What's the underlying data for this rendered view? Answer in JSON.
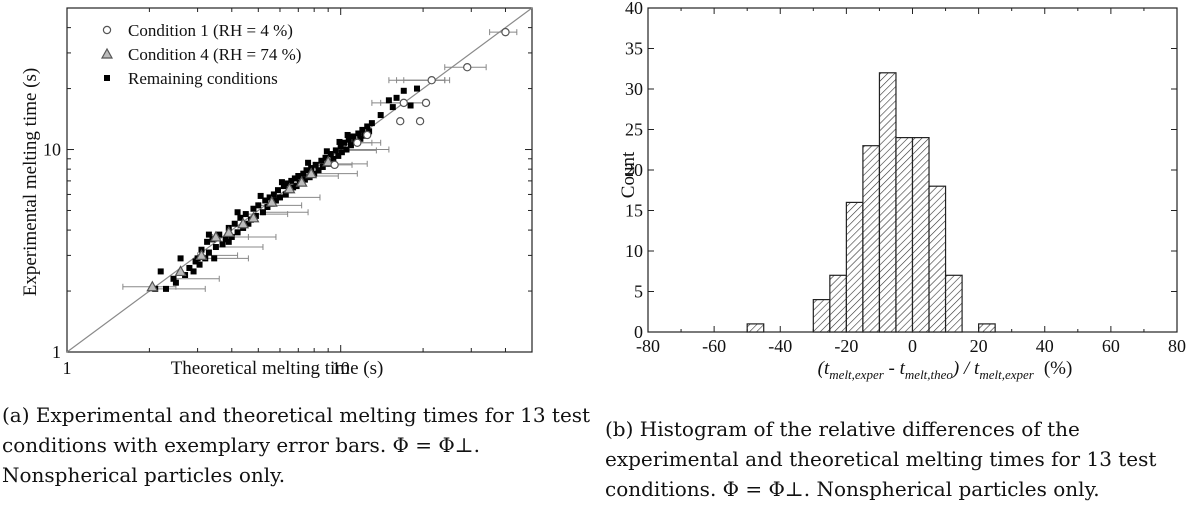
{
  "chart_data": [
    {
      "type": "scatter",
      "title": "",
      "xlabel": "Theoretical melting time (s)",
      "ylabel": "Experimental melting time (s)",
      "xscale": "log",
      "yscale": "log",
      "xlim": [
        1,
        50
      ],
      "ylim": [
        1,
        50
      ],
      "x_tick_labels": [
        "1",
        "10"
      ],
      "y_tick_labels": [
        "1",
        "10"
      ],
      "reference_line": "y = x",
      "legend_position": "top-left",
      "series": [
        {
          "name": "Condition 1 (RH = 4 %)",
          "marker": "open-circle",
          "points": [
            [
              40,
              38
            ],
            [
              21.5,
              22
            ],
            [
              29,
              25.5
            ],
            [
              17,
              17
            ],
            [
              20.5,
              17
            ],
            [
              16.5,
              13.8
            ],
            [
              19.5,
              13.8
            ],
            [
              11.5,
              10.8
            ],
            [
              12.5,
              11.8
            ],
            [
              9.5,
              8.4
            ]
          ],
          "x_error": [
            [
              35,
              44
            ],
            [
              17,
              25
            ],
            [
              24,
              34
            ],
            [
              14,
              20
            ],
            [
              16,
              24
            ],
            [
              13,
              20
            ],
            [
              15,
              24
            ],
            [
              10,
              13
            ],
            [
              11,
              14
            ],
            [
              8,
              11
            ]
          ]
        },
        {
          "name": "Condition 4 (RH = 74 %)",
          "marker": "open-triangle",
          "points": [
            [
              2.05,
              2.1
            ],
            [
              2.6,
              2.5
            ],
            [
              3.1,
              3.0
            ],
            [
              3.5,
              3.7
            ],
            [
              3.9,
              3.9
            ],
            [
              4.4,
              4.3
            ],
            [
              4.8,
              4.6
            ],
            [
              5.6,
              5.5
            ],
            [
              6.5,
              6.4
            ],
            [
              7.2,
              6.9
            ],
            [
              7.8,
              7.6
            ],
            [
              9.0,
              8.7
            ]
          ],
          "x_error": [
            [
              1.6,
              2.5
            ],
            [
              3.0,
              4.2
            ],
            [
              3.4,
              4.6
            ]
          ]
        },
        {
          "name": "Remaining conditions",
          "marker": "filled-square",
          "points": [
            [
              2.1,
              2.05
            ],
            [
              2.3,
              2.05
            ],
            [
              2.45,
              2.3
            ],
            [
              2.5,
              2.2
            ],
            [
              2.7,
              2.4
            ],
            [
              2.8,
              2.6
            ],
            [
              2.9,
              2.5
            ],
            [
              2.95,
              2.8
            ],
            [
              3.0,
              2.9
            ],
            [
              3.05,
              2.7
            ],
            [
              3.1,
              3.2
            ],
            [
              3.2,
              2.9
            ],
            [
              3.25,
              3.5
            ],
            [
              3.3,
              3.1
            ],
            [
              3.4,
              3.6
            ],
            [
              3.45,
              2.9
            ],
            [
              3.5,
              3.3
            ],
            [
              3.6,
              3.8
            ],
            [
              3.7,
              3.4
            ],
            [
              3.8,
              3.6
            ],
            [
              3.9,
              4.1
            ],
            [
              4.0,
              3.7
            ],
            [
              4.1,
              4.3
            ],
            [
              4.2,
              3.9
            ],
            [
              4.3,
              4.6
            ],
            [
              4.4,
              4.1
            ],
            [
              4.5,
              4.8
            ],
            [
              4.6,
              4.3
            ],
            [
              4.7,
              4.5
            ],
            [
              4.8,
              5.1
            ],
            [
              4.9,
              4.7
            ],
            [
              5.0,
              5.3
            ],
            [
              5.2,
              4.9
            ],
            [
              5.3,
              5.6
            ],
            [
              5.4,
              5.2
            ],
            [
              5.5,
              5.8
            ],
            [
              5.6,
              5.4
            ],
            [
              5.7,
              6.0
            ],
            [
              5.8,
              5.6
            ],
            [
              5.9,
              6.3
            ],
            [
              6.0,
              5.8
            ],
            [
              6.2,
              6.6
            ],
            [
              6.3,
              6.0
            ],
            [
              6.4,
              6.8
            ],
            [
              6.5,
              6.3
            ],
            [
              6.6,
              7.0
            ],
            [
              6.7,
              6.5
            ],
            [
              6.8,
              7.2
            ],
            [
              6.9,
              6.6
            ],
            [
              7.0,
              7.4
            ],
            [
              7.1,
              6.9
            ],
            [
              7.3,
              7.6
            ],
            [
              7.4,
              7.1
            ],
            [
              7.5,
              7.9
            ],
            [
              7.7,
              7.3
            ],
            [
              7.8,
              8.1
            ],
            [
              8.0,
              7.6
            ],
            [
              8.1,
              8.4
            ],
            [
              8.3,
              7.9
            ],
            [
              8.5,
              8.8
            ],
            [
              8.6,
              8.2
            ],
            [
              8.8,
              9.1
            ],
            [
              9.0,
              8.5
            ],
            [
              9.2,
              9.5
            ],
            [
              9.4,
              9.0
            ],
            [
              9.6,
              9.9
            ],
            [
              9.8,
              9.3
            ],
            [
              10.0,
              10.4
            ],
            [
              10.1,
              9.7
            ],
            [
              10.3,
              10.8
            ],
            [
              10.5,
              10.0
            ],
            [
              10.7,
              11.2
            ],
            [
              10.9,
              10.5
            ],
            [
              11.1,
              11.6
            ],
            [
              11.3,
              10.9
            ],
            [
              11.6,
              12.0
            ],
            [
              11.8,
              11.3
            ],
            [
              12.0,
              12.5
            ],
            [
              12.2,
              11.7
            ],
            [
              12.5,
              13.0
            ],
            [
              12.7,
              12.3
            ],
            [
              13.0,
              13.5
            ],
            [
              15.0,
              17.5
            ],
            [
              16.0,
              18.0
            ],
            [
              17.0,
              19.5
            ],
            [
              18.0,
              16.5
            ],
            [
              19.0,
              20.0
            ],
            [
              14.0,
              14.8
            ],
            [
              15.5,
              16.2
            ],
            [
              2.2,
              2.5
            ],
            [
              2.6,
              2.9
            ],
            [
              3.3,
              3.8
            ],
            [
              3.9,
              3.5
            ],
            [
              4.2,
              4.9
            ],
            [
              5.1,
              5.9
            ],
            [
              6.1,
              6.9
            ],
            [
              7.6,
              8.6
            ],
            [
              8.9,
              9.8
            ],
            [
              9.9,
              10.9
            ],
            [
              10.6,
              11.8
            ]
          ],
          "x_error": [
            [
              2.0,
              3.2
            ],
            [
              2.4,
              3.6
            ],
            [
              3.2,
              4.6
            ],
            [
              3.5,
              5.2
            ],
            [
              4.0,
              5.8
            ],
            [
              4.5,
              6.4
            ],
            [
              5.0,
              7.2
            ],
            [
              5.2,
              7.6
            ],
            [
              6.0,
              8.4
            ],
            [
              7.0,
              9.8
            ],
            [
              8.0,
              11.5
            ],
            [
              9.0,
              12.5
            ],
            [
              9.5,
              13.5
            ],
            [
              10.5,
              15.0
            ]
          ]
        }
      ]
    },
    {
      "type": "bar",
      "title": "",
      "xlabel": "(t_melt,exper - t_melt,theo) / t_melt,exper (%)",
      "ylabel": "Count",
      "xlim": [
        -80,
        80
      ],
      "ylim": [
        0,
        40
      ],
      "x_ticks": [
        -80,
        -60,
        -40,
        -20,
        0,
        20,
        40,
        60,
        80
      ],
      "y_ticks": [
        0,
        5,
        10,
        15,
        20,
        25,
        30,
        35,
        40
      ],
      "bin_width": 5,
      "bins": [
        {
          "left": -50,
          "count": 1
        },
        {
          "left": -30,
          "count": 4
        },
        {
          "left": -25,
          "count": 7
        },
        {
          "left": -20,
          "count": 16
        },
        {
          "left": -15,
          "count": 23
        },
        {
          "left": -10,
          "count": 32
        },
        {
          "left": -5,
          "count": 24
        },
        {
          "left": 0,
          "count": 24
        },
        {
          "left": 5,
          "count": 18
        },
        {
          "left": 10,
          "count": 7
        },
        {
          "left": 20,
          "count": 1
        }
      ],
      "xlabel_parts": {
        "open": "(t",
        "sub1": "melt,exper",
        "mid": " - t",
        "sub2": "melt,theo",
        "div": ") / t",
        "sub3": "melt,exper",
        "unit": "(%)"
      }
    }
  ],
  "captions": {
    "a": "(a) Experimental and theoretical melting times for 13 test conditions with exemplary error bars. Φ = Φ⊥. Nonspherical particles only.",
    "b": "(b) Histogram of the relative differences of the experimental and theoretical melting times for 13 test conditions. Φ = Φ⊥. Nonspherical particles only."
  }
}
